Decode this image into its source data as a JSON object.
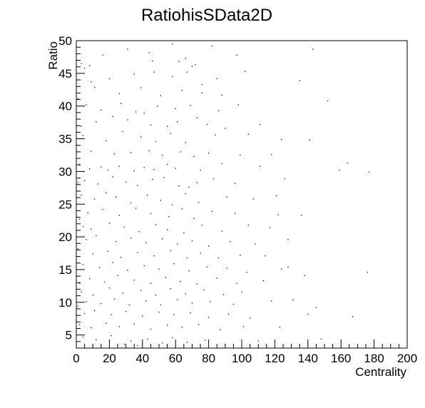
{
  "chart_data": {
    "type": "scatter",
    "title": "RatiohisSData2D",
    "xlabel": "Centrality",
    "ylabel": "Ratio",
    "xlim": [
      0,
      200
    ],
    "ylim": [
      3,
      50
    ],
    "x_ticks": [
      0,
      20,
      40,
      60,
      80,
      100,
      120,
      140,
      160,
      180,
      200
    ],
    "y_ticks": [
      5,
      10,
      15,
      20,
      25,
      30,
      35,
      40,
      45,
      50
    ],
    "x_tick_labels": [
      "0",
      "20",
      "40",
      "60",
      "80",
      "100",
      "120",
      "140",
      "160",
      "180",
      "200"
    ],
    "y_tick_labels": [
      "5",
      "10",
      "15",
      "20",
      "25",
      "30",
      "35",
      "40",
      "45",
      "50"
    ],
    "grid": false,
    "legend": "none",
    "marker_color": "#000000",
    "series": [
      {
        "values": [
          [
            3,
            46.5
          ],
          [
            5,
            45.8
          ],
          [
            8,
            46.2
          ],
          [
            16,
            47.8
          ],
          [
            31,
            48.7
          ],
          [
            44,
            48.2
          ],
          [
            46,
            46.9
          ],
          [
            58,
            49.5
          ],
          [
            62,
            46.8
          ],
          [
            66,
            47.3
          ],
          [
            70,
            46.1
          ],
          [
            72,
            46.3
          ],
          [
            82,
            49.2
          ],
          [
            97,
            47.8
          ],
          [
            143,
            48.7
          ],
          [
            9,
            43.7
          ],
          [
            20,
            44.2
          ],
          [
            35,
            44.9
          ],
          [
            47,
            45.2
          ],
          [
            58,
            44.5
          ],
          [
            67,
            45.2
          ],
          [
            76,
            43.3
          ],
          [
            85,
            44.2
          ],
          [
            102,
            45.3
          ],
          [
            11,
            42.9
          ],
          [
            26,
            41.9
          ],
          [
            39,
            42.8
          ],
          [
            51,
            41.6
          ],
          [
            64,
            42.4
          ],
          [
            76,
            42.0
          ],
          [
            88,
            41.7
          ],
          [
            135,
            43.9
          ],
          [
            6,
            40.2
          ],
          [
            15,
            39.4
          ],
          [
            27,
            40.4
          ],
          [
            36,
            39.1
          ],
          [
            41,
            38.9
          ],
          [
            49,
            40.0
          ],
          [
            60,
            39.6
          ],
          [
            69,
            40.1
          ],
          [
            86,
            39.3
          ],
          [
            98,
            40.2
          ],
          [
            152,
            40.8
          ],
          [
            12,
            37.6
          ],
          [
            22,
            38.4
          ],
          [
            31,
            37.9
          ],
          [
            45,
            37.1
          ],
          [
            55,
            36.9
          ],
          [
            61,
            37.6
          ],
          [
            73,
            38.2
          ],
          [
            79,
            37.2
          ],
          [
            90,
            36.6
          ],
          [
            111,
            37.2
          ],
          [
            4,
            35.5
          ],
          [
            18,
            34.7
          ],
          [
            28,
            36.1
          ],
          [
            39,
            35.3
          ],
          [
            48,
            34.6
          ],
          [
            57,
            35.8
          ],
          [
            66,
            34.4
          ],
          [
            84,
            35.6
          ],
          [
            104,
            35.7
          ],
          [
            124,
            34.9
          ],
          [
            9,
            33.1
          ],
          [
            23,
            32.7
          ],
          [
            33,
            32.9
          ],
          [
            44,
            33.2
          ],
          [
            52,
            32.5
          ],
          [
            63,
            33.0
          ],
          [
            71,
            32.3
          ],
          [
            80,
            32.8
          ],
          [
            99,
            32.5
          ],
          [
            118,
            32.6
          ],
          [
            141,
            34.8
          ],
          [
            2,
            31.1
          ],
          [
            8,
            30.4
          ],
          [
            15,
            30.7
          ],
          [
            19,
            30.2
          ],
          [
            26,
            30.8
          ],
          [
            35,
            30.1
          ],
          [
            41,
            30.6
          ],
          [
            47,
            30.3
          ],
          [
            55,
            31.1
          ],
          [
            60,
            30.5
          ],
          [
            75,
            30.2
          ],
          [
            88,
            31.2
          ],
          [
            111,
            30.8
          ],
          [
            159,
            30.2
          ],
          [
            164,
            31.3
          ],
          [
            177,
            29.9
          ],
          [
            5,
            28.6
          ],
          [
            13,
            28.1
          ],
          [
            22,
            29.2
          ],
          [
            30,
            28.4
          ],
          [
            37,
            27.9
          ],
          [
            46,
            28.8
          ],
          [
            53,
            29.1
          ],
          [
            62,
            27.8
          ],
          [
            68,
            27.6
          ],
          [
            73,
            28.3
          ],
          [
            83,
            28.9
          ],
          [
            96,
            28.2
          ],
          [
            126,
            28.9
          ],
          [
            3,
            26.4
          ],
          [
            11,
            25.8
          ],
          [
            18,
            26.7
          ],
          [
            24,
            26.1
          ],
          [
            33,
            25.2
          ],
          [
            43,
            26.4
          ],
          [
            51,
            25.6
          ],
          [
            58,
            24.9
          ],
          [
            66,
            26.6
          ],
          [
            74,
            25.3
          ],
          [
            91,
            26.1
          ],
          [
            107,
            25.8
          ],
          [
            121,
            26.3
          ],
          [
            7,
            23.7
          ],
          [
            16,
            24.2
          ],
          [
            26,
            23.3
          ],
          [
            36,
            24.4
          ],
          [
            45,
            23.6
          ],
          [
            56,
            23.1
          ],
          [
            64,
            24.3
          ],
          [
            71,
            22.8
          ],
          [
            82,
            23.9
          ],
          [
            96,
            23.6
          ],
          [
            122,
            23.4
          ],
          [
            136,
            23.3
          ],
          [
            4,
            21.6
          ],
          [
            9,
            21.2
          ],
          [
            20,
            22.1
          ],
          [
            29,
            21.5
          ],
          [
            38,
            20.8
          ],
          [
            48,
            21.9
          ],
          [
            55,
            21.1
          ],
          [
            65,
            20.6
          ],
          [
            76,
            21.8
          ],
          [
            88,
            20.9
          ],
          [
            104,
            21.8
          ],
          [
            117,
            21.4
          ],
          [
            6,
            19.6
          ],
          [
            12,
            20.2
          ],
          [
            24,
            19.3
          ],
          [
            33,
            19.8
          ],
          [
            42,
            19.1
          ],
          [
            52,
            19.7
          ],
          [
            61,
            18.9
          ],
          [
            70,
            19.4
          ],
          [
            80,
            18.6
          ],
          [
            93,
            19.3
          ],
          [
            108,
            18.9
          ],
          [
            128,
            19.6
          ],
          [
            10,
            17.4
          ],
          [
            19,
            17.8
          ],
          [
            27,
            16.9
          ],
          [
            37,
            17.6
          ],
          [
            47,
            17.1
          ],
          [
            57,
            17.9
          ],
          [
            67,
            16.8
          ],
          [
            75,
            17.5
          ],
          [
            86,
            16.8
          ],
          [
            99,
            17.2
          ],
          [
            114,
            17.1
          ],
          [
            4,
            15.8
          ],
          [
            14,
            15.3
          ],
          [
            22,
            16.1
          ],
          [
            31,
            14.9
          ],
          [
            41,
            15.6
          ],
          [
            50,
            15.1
          ],
          [
            59,
            15.9
          ],
          [
            68,
            14.8
          ],
          [
            79,
            15.4
          ],
          [
            91,
            15.2
          ],
          [
            103,
            14.6
          ],
          [
            124,
            15.1
          ],
          [
            128,
            15.4
          ],
          [
            8,
            13.6
          ],
          [
            17,
            13.1
          ],
          [
            25,
            14.1
          ],
          [
            35,
            13.4
          ],
          [
            45,
            12.9
          ],
          [
            54,
            13.8
          ],
          [
            63,
            13.2
          ],
          [
            73,
            12.8
          ],
          [
            85,
            13.7
          ],
          [
            97,
            12.9
          ],
          [
            113,
            13.3
          ],
          [
            138,
            14.1
          ],
          [
            176,
            14.6
          ],
          [
            3,
            11.6
          ],
          [
            10,
            11.1
          ],
          [
            20,
            12.2
          ],
          [
            28,
            11.4
          ],
          [
            39,
            11.8
          ],
          [
            48,
            11.1
          ],
          [
            57,
            12.1
          ],
          [
            66,
            11.3
          ],
          [
            77,
            11.9
          ],
          [
            89,
            11.2
          ],
          [
            100,
            11.6
          ],
          [
            6,
            10.1
          ],
          [
            15,
            9.8
          ],
          [
            23,
            10.5
          ],
          [
            32,
            9.6
          ],
          [
            42,
            10.2
          ],
          [
            51,
            9.6
          ],
          [
            61,
            10.4
          ],
          [
            70,
            9.9
          ],
          [
            81,
            10.1
          ],
          [
            95,
            9.7
          ],
          [
            118,
            10.2
          ],
          [
            131,
            10.4
          ],
          [
            5,
            8.3
          ],
          [
            11,
            8.7
          ],
          [
            21,
            8.1
          ],
          [
            30,
            8.6
          ],
          [
            40,
            7.9
          ],
          [
            50,
            8.5
          ],
          [
            59,
            8.1
          ],
          [
            69,
            8.4
          ],
          [
            80,
            7.7
          ],
          [
            92,
            8.2
          ],
          [
            105,
            7.6
          ],
          [
            140,
            8.2
          ],
          [
            145,
            9.2
          ],
          [
            167,
            7.8
          ],
          [
            2,
            6.6
          ],
          [
            9,
            6.1
          ],
          [
            18,
            6.8
          ],
          [
            26,
            6.3
          ],
          [
            35,
            6.7
          ],
          [
            45,
            5.9
          ],
          [
            55,
            6.5
          ],
          [
            64,
            6.2
          ],
          [
            74,
            6.6
          ],
          [
            87,
            5.8
          ],
          [
            101,
            6.3
          ],
          [
            123,
            6.2
          ],
          [
            4,
            4.7
          ],
          [
            12,
            4.3
          ],
          [
            21,
            4.9
          ],
          [
            29,
            3.6
          ],
          [
            33,
            4.1
          ],
          [
            37,
            3.4
          ],
          [
            43,
            4.4
          ],
          [
            52,
            3.8
          ],
          [
            58,
            4.6
          ],
          [
            67,
            3.9
          ],
          [
            78,
            4.2
          ],
          [
            90,
            3.6
          ],
          [
            110,
            4.1
          ],
          [
            148,
            4.4
          ],
          [
            1,
            28.3
          ],
          [
            1,
            18.2
          ],
          [
            2,
            12.9
          ],
          [
            1,
            9.4
          ],
          [
            2,
            22.7
          ],
          [
            3,
            36.9
          ],
          [
            1,
            41.2
          ]
        ]
      }
    ]
  }
}
